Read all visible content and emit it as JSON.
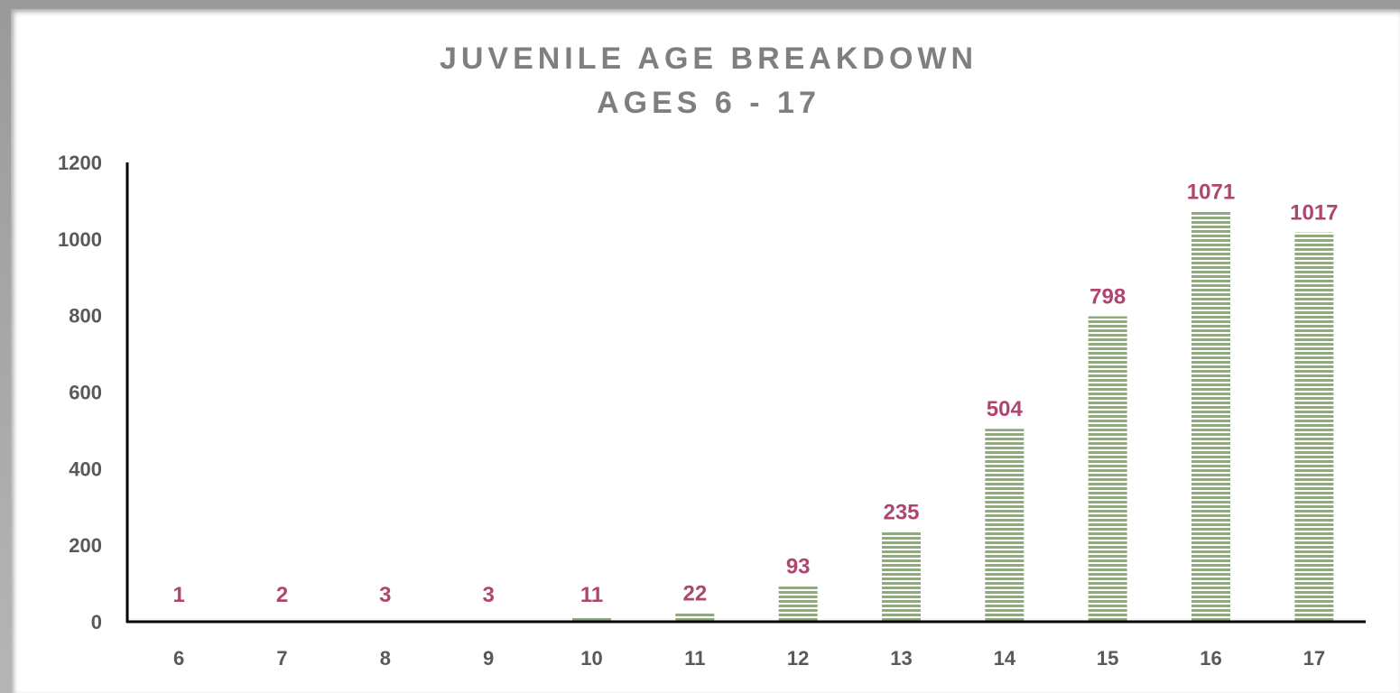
{
  "chart_data": {
    "type": "bar",
    "title": "JUVENILE AGE BREAKDOWN",
    "subtitle": "AGES 6 - 17",
    "categories": [
      "6",
      "7",
      "8",
      "9",
      "10",
      "11",
      "12",
      "13",
      "14",
      "15",
      "16",
      "17"
    ],
    "values": [
      1,
      2,
      3,
      3,
      11,
      22,
      93,
      235,
      504,
      798,
      1071,
      1017
    ],
    "data_labels": [
      "1",
      "2",
      "3",
      "3",
      "11",
      "22",
      "93",
      "235",
      "504",
      "798",
      "1071",
      "1017"
    ],
    "ylim": [
      0,
      1200
    ],
    "yticks": [
      "0",
      "200",
      "400",
      "600",
      "800",
      "1000",
      "1200"
    ],
    "ytick_values": [
      0,
      200,
      400,
      600,
      800,
      1000,
      1200
    ],
    "xlabel": "",
    "ylabel": "",
    "grid": false,
    "legend": "none",
    "colors": {
      "bar_fill": "#8faa7c",
      "bar_stripe": "#e8f0e2",
      "data_label": "#b0456f",
      "tick_label": "#595959",
      "title": "#7f7f7f",
      "axis": "#000000"
    }
  }
}
